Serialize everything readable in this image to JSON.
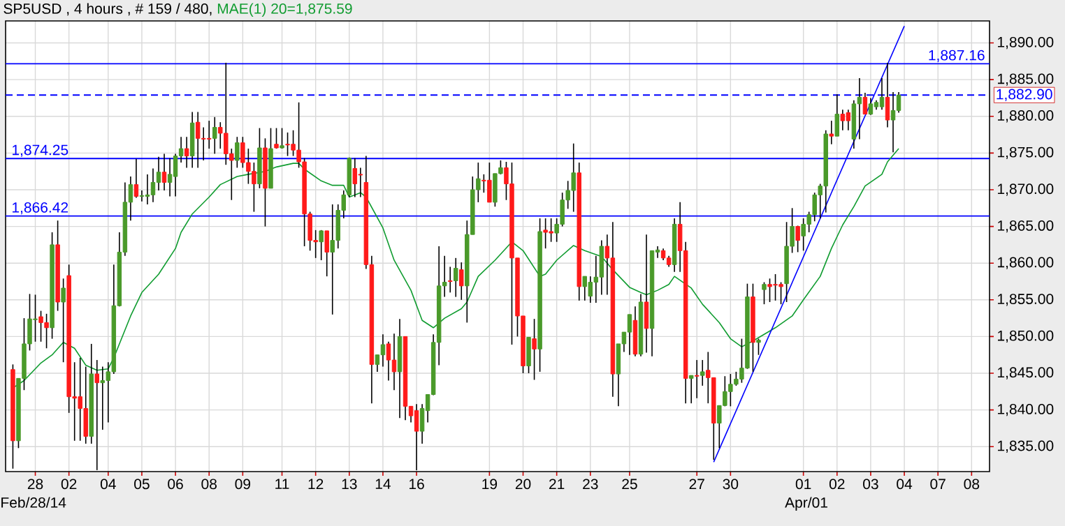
{
  "chart_data": {
    "type": "candlestick",
    "title": "SP5USD , 4 hours , # 159 / 480,",
    "categories": [
      null,
      null,
      null,
      null,
      "28",
      null,
      null,
      null,
      null,
      null,
      "02",
      null,
      null,
      null,
      null,
      null,
      null,
      "04",
      null,
      null,
      null,
      null,
      null,
      "05",
      null,
      null,
      null,
      null,
      null,
      "06",
      null,
      null,
      null,
      null,
      null,
      "08",
      null,
      null,
      null,
      null,
      null,
      "09",
      null,
      null,
      null,
      null,
      null,
      null,
      "11",
      null,
      null,
      null,
      null,
      null,
      "12",
      null,
      null,
      null,
      null,
      null,
      "13",
      null,
      null,
      null,
      null,
      null,
      "14",
      null,
      null,
      null,
      null,
      null,
      "16",
      null,
      null,
      null,
      null,
      null,
      null,
      null,
      null,
      null,
      null,
      null,
      null,
      "19",
      null,
      null,
      null,
      null,
      null,
      "20",
      null,
      null,
      null,
      null,
      null,
      "21",
      null,
      null,
      null,
      null,
      null,
      "23",
      null,
      null,
      null,
      null,
      null,
      null,
      "25",
      null,
      null,
      null,
      null,
      null,
      null,
      null,
      null,
      null,
      null,
      null,
      "27",
      null,
      null,
      null,
      null,
      null,
      "30",
      null,
      null,
      null,
      null,
      null,
      null,
      null,
      null,
      null,
      null,
      null,
      null,
      "01",
      null,
      null,
      null,
      null,
      null,
      "02",
      null,
      null,
      null,
      null,
      null,
      "03",
      null,
      null,
      null,
      null,
      null,
      "04",
      null,
      null,
      null,
      null,
      null,
      "07",
      null,
      null,
      null,
      null,
      null,
      "08"
    ],
    "ohlc": [
      [
        1845.5,
        1846.2,
        1832.0,
        1835.8
      ],
      [
        1835.8,
        1844.3,
        1834.8,
        1844.3
      ],
      [
        1844.3,
        1852.5,
        1842.7,
        1849.0
      ],
      [
        1849.0,
        1855.8,
        1848.1,
        1852.4
      ],
      [
        1852.3,
        1855.7,
        1849.3,
        1852.4
      ],
      [
        1852.7,
        1853.5,
        1849.3,
        1851.9
      ],
      [
        1851.9,
        1853.1,
        1848.4,
        1851.2
      ],
      [
        1851.2,
        1864.2,
        1849.7,
        1862.5
      ],
      [
        1862.5,
        1865.8,
        1853.5,
        1854.7
      ],
      [
        1854.7,
        1857.9,
        1846.5,
        1856.6
      ],
      [
        1858.3,
        1859.8,
        1839.6,
        1841.8
      ],
      [
        1841.8,
        1846.5,
        1835.8,
        1841.6
      ],
      [
        1841.8,
        1847.1,
        1835.8,
        1840.2
      ],
      [
        1840.2,
        1845.9,
        1835.4,
        1836.4
      ],
      [
        1836.4,
        1849.0,
        1835.4,
        1844.9
      ],
      [
        1844.9,
        1846.8,
        1831.8,
        1843.7
      ],
      [
        1843.7,
        1845.9,
        1837.3,
        1844.0
      ],
      [
        1844.0,
        1846.5,
        1838.3,
        1845.2
      ],
      [
        1845.2,
        1859.8,
        1844.9,
        1854.2
      ],
      [
        1854.2,
        1864.2,
        1854.1,
        1861.5
      ],
      [
        1861.5,
        1871.0,
        1861.0,
        1868.3
      ],
      [
        1868.3,
        1871.8,
        1865.8,
        1870.7
      ],
      [
        1870.7,
        1874.2,
        1868.9,
        1869.1
      ],
      [
        1869.1,
        1869.9,
        1868.4,
        1869.2
      ],
      [
        1869.1,
        1872.1,
        1868.0,
        1869.3
      ],
      [
        1869.3,
        1872.9,
        1868.3,
        1871.0
      ],
      [
        1871.0,
        1874.5,
        1869.9,
        1872.4
      ],
      [
        1872.4,
        1874.9,
        1869.9,
        1871.0
      ],
      [
        1871.0,
        1874.3,
        1869.1,
        1872.1
      ],
      [
        1871.8,
        1874.9,
        1869.1,
        1874.6
      ],
      [
        1874.6,
        1877.2,
        1873.7,
        1875.6
      ],
      [
        1875.6,
        1877.2,
        1873.0,
        1874.6
      ],
      [
        1874.6,
        1880.6,
        1873.0,
        1879.1
      ],
      [
        1879.2,
        1880.6,
        1873.0,
        1877.0
      ],
      [
        1877.0,
        1878.5,
        1874.0,
        1876.9
      ],
      [
        1877.0,
        1879.4,
        1875.6,
        1876.9
      ],
      [
        1877.0,
        1879.9,
        1874.9,
        1878.5
      ],
      [
        1878.5,
        1879.2,
        1875.6,
        1877.7
      ],
      [
        1877.7,
        1887.3,
        1873.4,
        1874.9
      ],
      [
        1874.9,
        1875.6,
        1868.6,
        1874.0
      ],
      [
        1874.0,
        1877.2,
        1873.0,
        1876.4
      ],
      [
        1876.4,
        1877.2,
        1873.0,
        1873.7
      ],
      [
        1873.7,
        1875.6,
        1870.8,
        1872.5
      ],
      [
        1872.5,
        1873.7,
        1867.0,
        1870.8
      ],
      [
        1870.8,
        1878.4,
        1870.2,
        1875.7
      ],
      [
        1875.7,
        1877.0,
        1865.0,
        1870.2
      ],
      [
        1870.2,
        1878.4,
        1870.2,
        1875.6
      ],
      [
        1876.2,
        1878.4,
        1875.6,
        1875.7
      ],
      [
        1875.7,
        1878.4,
        1875.6,
        1876.0
      ],
      [
        1876.2,
        1877.8,
        1874.6,
        1876.1
      ],
      [
        1876.2,
        1878.1,
        1874.6,
        1875.4
      ],
      [
        1875.4,
        1881.9,
        1873.0,
        1873.8
      ],
      [
        1873.8,
        1874.3,
        1862.3,
        1866.7
      ],
      [
        1866.7,
        1867.0,
        1861.7,
        1863.1
      ],
      [
        1863.1,
        1864.5,
        1860.7,
        1862.9
      ],
      [
        1862.9,
        1864.5,
        1860.4,
        1864.4
      ],
      [
        1864.4,
        1864.4,
        1858.2,
        1861.5
      ],
      [
        1861.5,
        1868.0,
        1853.0,
        1863.1
      ],
      [
        1863.1,
        1868.0,
        1862.0,
        1867.2
      ],
      [
        1867.2,
        1869.9,
        1866.1,
        1869.3
      ],
      [
        1869.3,
        1874.4,
        1869.0,
        1874.3
      ],
      [
        1872.9,
        1874.3,
        1869.0,
        1870.8
      ],
      [
        1872.1,
        1873.0,
        1869.0,
        1872.0
      ],
      [
        1871.0,
        1874.6,
        1859.2,
        1859.8
      ],
      [
        1859.8,
        1861.0,
        1840.9,
        1846.2
      ],
      [
        1846.2,
        1847.5,
        1845.2,
        1847.5
      ],
      [
        1847.5,
        1850.3,
        1845.9,
        1848.9
      ],
      [
        1849.0,
        1849.3,
        1844.0,
        1846.8
      ],
      [
        1846.8,
        1850.4,
        1842.7,
        1845.2
      ],
      [
        1845.2,
        1852.4,
        1838.9,
        1850.0
      ],
      [
        1850.0,
        1850.0,
        1838.6,
        1840.5
      ],
      [
        1840.5,
        1840.5,
        1838.3,
        1839.2
      ],
      [
        1839.9,
        1840.8,
        1831.8,
        1837.1
      ],
      [
        1837.1,
        1840.8,
        1835.4,
        1840.2
      ],
      [
        1839.9,
        1842.1,
        1838.3,
        1842.1
      ],
      [
        1842.1,
        1850.3,
        1842.0,
        1849.2
      ],
      [
        1849.2,
        1862.3,
        1846.1,
        1856.9
      ],
      [
        1856.9,
        1861.0,
        1855.4,
        1857.4
      ],
      [
        1857.6,
        1859.5,
        1856.0,
        1857.5
      ],
      [
        1857.6,
        1860.7,
        1855.4,
        1859.3
      ],
      [
        1859.1,
        1860.1,
        1855.0,
        1856.9
      ],
      [
        1856.9,
        1865.8,
        1851.9,
        1863.9
      ],
      [
        1863.9,
        1871.8,
        1863.9,
        1870.0
      ],
      [
        1870.0,
        1873.7,
        1868.3,
        1871.5
      ],
      [
        1871.3,
        1872.1,
        1869.6,
        1871.2
      ],
      [
        1871.3,
        1873.7,
        1868.3,
        1868.3
      ],
      [
        1868.3,
        1872.2,
        1867.7,
        1872.2
      ],
      [
        1872.2,
        1874.0,
        1872.1,
        1873.0
      ],
      [
        1873.0,
        1873.8,
        1868.6,
        1870.8
      ],
      [
        1870.8,
        1873.7,
        1848.9,
        1860.7
      ],
      [
        1860.7,
        1860.7,
        1850.0,
        1852.8
      ],
      [
        1852.8,
        1852.8,
        1845.0,
        1846.0
      ],
      [
        1846.0,
        1849.9,
        1845.0,
        1849.9
      ],
      [
        1849.7,
        1852.4,
        1844.1,
        1848.3
      ],
      [
        1848.3,
        1866.1,
        1845.2,
        1864.3
      ],
      [
        1864.5,
        1866.1,
        1862.0,
        1864.2
      ],
      [
        1864.3,
        1866.1,
        1862.9,
        1864.1
      ],
      [
        1864.1,
        1866.1,
        1862.9,
        1865.3
      ],
      [
        1865.3,
        1869.6,
        1865.0,
        1868.6
      ],
      [
        1868.6,
        1871.2,
        1867.4,
        1869.9
      ],
      [
        1869.9,
        1876.3,
        1867.0,
        1872.3
      ],
      [
        1872.3,
        1873.7,
        1854.9,
        1856.8
      ],
      [
        1856.8,
        1858.2,
        1854.9,
        1858.2
      ],
      [
        1855.5,
        1858.2,
        1854.6,
        1857.4
      ],
      [
        1857.4,
        1861.0,
        1854.6,
        1858.1
      ],
      [
        1858.1,
        1863.1,
        1855.7,
        1862.3
      ],
      [
        1862.3,
        1863.9,
        1855.7,
        1860.7
      ],
      [
        1860.7,
        1865.6,
        1841.8,
        1844.9
      ],
      [
        1844.9,
        1849.0,
        1840.5,
        1849.0
      ],
      [
        1849.0,
        1850.6,
        1847.9,
        1850.6
      ],
      [
        1850.6,
        1853.0,
        1847.5,
        1853.0
      ],
      [
        1852.2,
        1854.1,
        1847.3,
        1847.6
      ],
      [
        1847.6,
        1855.8,
        1847.3,
        1854.7
      ],
      [
        1854.7,
        1863.9,
        1847.8,
        1851.1
      ],
      [
        1851.1,
        1861.7,
        1847.3,
        1861.7
      ],
      [
        1861.5,
        1862.3,
        1860.7,
        1861.8
      ],
      [
        1861.7,
        1862.0,
        1860.4,
        1860.7
      ],
      [
        1860.7,
        1861.0,
        1859.5,
        1859.8
      ],
      [
        1859.8,
        1866.1,
        1858.8,
        1865.3
      ],
      [
        1865.3,
        1868.3,
        1858.8,
        1861.7
      ],
      [
        1861.7,
        1862.9,
        1840.9,
        1844.3
      ],
      [
        1844.3,
        1844.7,
        1840.9,
        1844.7
      ],
      [
        1844.7,
        1846.8,
        1841.6,
        1844.6
      ],
      [
        1844.7,
        1846.8,
        1843.3,
        1845.2
      ],
      [
        1845.4,
        1847.9,
        1840.9,
        1844.4
      ],
      [
        1844.4,
        1844.4,
        1833.2,
        1838.2
      ],
      [
        1838.2,
        1840.6,
        1834.8,
        1840.6
      ],
      [
        1840.6,
        1844.6,
        1840.5,
        1842.5
      ],
      [
        1842.5,
        1844.9,
        1840.5,
        1843.5
      ],
      [
        1843.5,
        1845.2,
        1843.3,
        1844.2
      ],
      [
        1844.2,
        1849.7,
        1843.7,
        1845.7
      ],
      [
        1845.7,
        1857.2,
        1845.6,
        1855.4
      ],
      [
        1855.4,
        1857.2,
        1845.2,
        1849.2
      ],
      [
        1849.2,
        1849.7,
        1847.5,
        1849.5
      ],
      [
        1856.4,
        1857.4,
        1854.4,
        1857.1
      ],
      [
        1857.1,
        1857.9,
        1854.7,
        1856.8
      ],
      [
        1857.1,
        1858.5,
        1854.9,
        1857.0
      ],
      [
        1857.1,
        1857.4,
        1854.4,
        1856.8
      ],
      [
        1857.2,
        1865.6,
        1854.7,
        1862.3
      ],
      [
        1862.3,
        1867.5,
        1861.4,
        1865.0
      ],
      [
        1865.0,
        1865.1,
        1861.5,
        1863.1
      ],
      [
        1863.7,
        1866.1,
        1861.7,
        1865.3
      ],
      [
        1865.3,
        1867.0,
        1864.2,
        1866.6
      ],
      [
        1866.6,
        1869.6,
        1865.7,
        1869.3
      ],
      [
        1869.3,
        1870.8,
        1866.1,
        1870.5
      ],
      [
        1870.5,
        1878.1,
        1866.9,
        1877.6
      ],
      [
        1877.6,
        1879.4,
        1876.2,
        1877.3
      ],
      [
        1877.3,
        1883.0,
        1877.3,
        1880.3
      ],
      [
        1880.3,
        1880.9,
        1878.1,
        1879.4
      ],
      [
        1880.5,
        1880.9,
        1878.1,
        1879.4
      ],
      [
        1876.9,
        1882.2,
        1875.6,
        1881.7
      ],
      [
        1881.7,
        1885.2,
        1876.9,
        1882.6
      ],
      [
        1882.6,
        1883.2,
        1880.3,
        1880.3
      ],
      [
        1880.3,
        1882.5,
        1880.2,
        1881.7
      ],
      [
        1881.3,
        1882.2,
        1880.9,
        1881.9
      ],
      [
        1881.3,
        1885.2,
        1880.9,
        1882.6
      ],
      [
        1882.6,
        1887.3,
        1878.5,
        1879.5
      ],
      [
        1879.5,
        1883.3,
        1875.1,
        1880.8
      ],
      [
        1880.8,
        1883.3,
        1880.5,
        1882.9
      ],
      null,
      null,
      null,
      null,
      null,
      null,
      null,
      null,
      null,
      null,
      null,
      null,
      null
    ],
    "series": [
      {
        "type": "line",
        "name": "MAE(1) 20=1,875.59",
        "color": "#109c30",
        "values": [
          1843.0,
          null,
          1844.0,
          null,
          null,
          1846.4,
          null,
          1847.5,
          null,
          1849.2,
          null,
          1848.4,
          null,
          1846.1,
          null,
          1845.4,
          null,
          1845.6,
          1847.1,
          null,
          null,
          1852.8,
          null,
          1856.0,
          null,
          null,
          1858.5,
          null,
          null,
          1862.0,
          1864.2,
          null,
          1866.7,
          null,
          null,
          1869.0,
          null,
          1870.7,
          null,
          null,
          1871.8,
          null,
          1872.1,
          null,
          null,
          1872.5,
          null,
          1873.1,
          null,
          null,
          1873.6,
          1873.6,
          1872.8,
          null,
          null,
          1871.2,
          null,
          1870.6,
          null,
          1870.6,
          1869.0,
          null,
          1869.6,
          1869.0,
          null,
          null,
          1864.8,
          null,
          1860.4,
          null,
          null,
          1856.3,
          null,
          1852.2,
          null,
          1851.2,
          null,
          1852.5,
          null,
          null,
          1853.8,
          1854.7,
          null,
          1858.2,
          null,
          null,
          1860.4,
          null,
          null,
          1862.9,
          null,
          1861.7,
          null,
          null,
          1858.2,
          1858.5,
          null,
          1860.4,
          null,
          null,
          1862.4,
          null,
          1861.7,
          null,
          null,
          1860.9,
          null,
          1859.1,
          null,
          null,
          1856.7,
          null,
          1856.0,
          1855.7,
          null,
          1856.3,
          null,
          1857.1,
          1858.2,
          null,
          null,
          1856.6,
          null,
          1854.4,
          null,
          null,
          1851.9,
          null,
          1849.7,
          null,
          1848.6,
          null,
          1849.4,
          null,
          1850.3,
          null,
          1851.2,
          null,
          null,
          1852.8,
          null,
          1855.0,
          null,
          null,
          1858.2,
          null,
          1862.0,
          null,
          1865.2,
          null,
          1867.7,
          null,
          1870.5,
          null,
          null,
          1872.1,
          1873.8,
          null,
          1875.6,
          null,
          null,
          null,
          null,
          null,
          null,
          null,
          null,
          null,
          null,
          null,
          null,
          null
        ]
      },
      {
        "type": "line",
        "color": "#0000ff",
        "values": [
          null,
          null,
          null,
          null,
          null,
          null,
          null,
          null,
          null,
          null,
          null,
          null,
          null,
          null,
          null,
          null,
          null,
          null,
          null,
          null,
          null,
          null,
          null,
          null,
          null,
          null,
          null,
          null,
          null,
          null,
          null,
          null,
          null,
          null,
          null,
          null,
          null,
          null,
          null,
          null,
          null,
          null,
          null,
          null,
          null,
          null,
          null,
          null,
          null,
          null,
          null,
          null,
          null,
          null,
          null,
          null,
          null,
          null,
          null,
          null,
          null,
          null,
          null,
          null,
          null,
          null,
          null,
          null,
          null,
          null,
          null,
          null,
          null,
          null,
          null,
          null,
          null,
          null,
          null,
          null,
          null,
          null,
          null,
          null,
          null,
          null,
          null,
          null,
          null,
          null,
          null,
          null,
          null,
          null,
          null,
          null,
          null,
          null,
          null,
          null,
          null,
          null,
          null,
          null,
          null,
          null,
          null,
          null,
          null,
          null,
          null,
          null,
          null,
          null,
          null,
          null,
          null,
          null,
          null,
          null,
          null,
          null,
          null,
          null,
          null,
          1832.9,
          null,
          null,
          null,
          null,
          null,
          null,
          null,
          null,
          null,
          null,
          null,
          null,
          null,
          null,
          null,
          null,
          null,
          null,
          null,
          null,
          null,
          null,
          null,
          null,
          null,
          null,
          null,
          null,
          null,
          null,
          null,
          null,
          null,
          1892.3,
          null,
          null,
          null,
          null,
          null,
          null,
          null,
          null,
          null,
          null,
          null,
          null
        ]
      }
    ],
    "ylim": [
      1831.6,
      1893
    ],
    "yticks": [
      {
        "value": 1835,
        "label": "1,835.00"
      },
      {
        "value": 1840,
        "label": "1,840.00"
      },
      {
        "value": 1845,
        "label": "1,845.00"
      },
      {
        "value": 1850,
        "label": "1,850.00"
      },
      {
        "value": 1855,
        "label": "1,855.00"
      },
      {
        "value": 1860,
        "label": "1,860.00"
      },
      {
        "value": 1865,
        "label": "1,865.00"
      },
      {
        "value": 1870,
        "label": "1,870.00"
      },
      {
        "value": 1875,
        "label": "1,875.00"
      },
      {
        "value": 1880,
        "label": "1,880.00"
      },
      {
        "value": 1885,
        "label": "1,885.00"
      },
      {
        "value": 1890,
        "label": "1,890.00"
      }
    ],
    "grid": true,
    "ref_lines": [
      {
        "axis": "y",
        "value": 1887.16,
        "label": "1,887.16",
        "color": "#0000ff"
      },
      {
        "axis": "y",
        "value": 1874.25,
        "label": "1,874.25",
        "color": "#0000ff"
      },
      {
        "axis": "y",
        "value": 1866.42,
        "label": "1,866.42",
        "color": "#0000ff"
      },
      {
        "axis": "y",
        "value": 1882.9,
        "label": "1,882.90",
        "color": "#0000ff",
        "line_style": "dashed"
      }
    ],
    "annotations": [
      "Feb/28/14",
      "Apr/01"
    ]
  }
}
